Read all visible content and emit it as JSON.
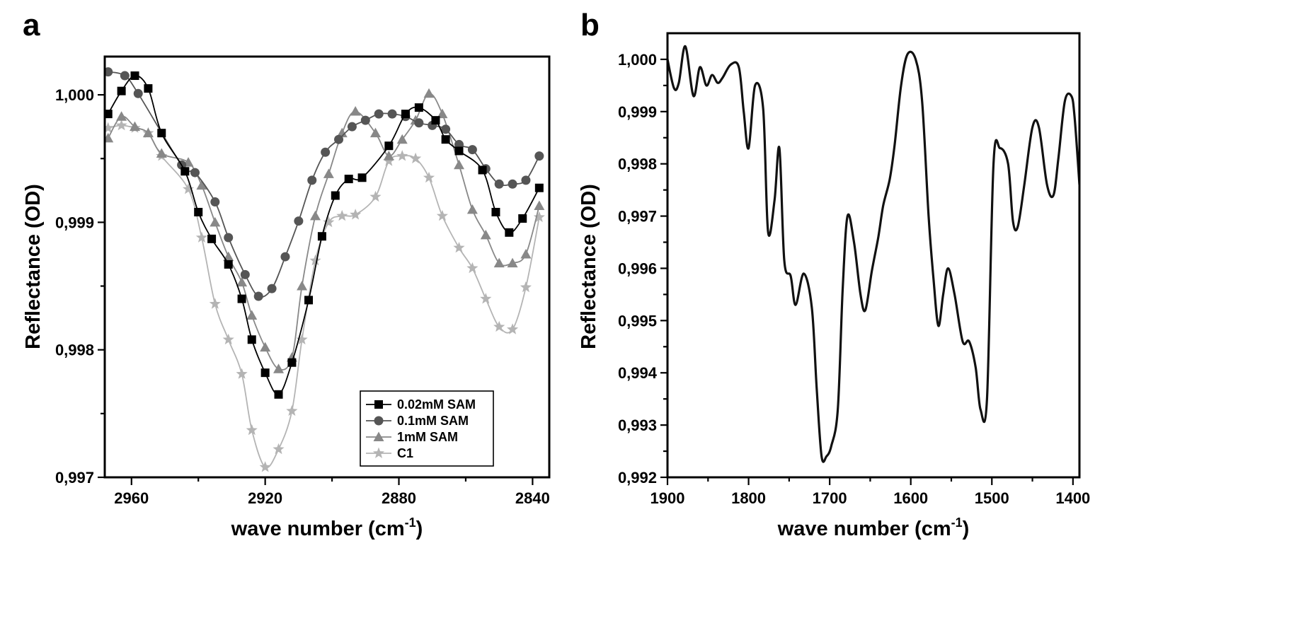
{
  "chart_data": [
    {
      "panel": "a",
      "type": "line",
      "xlabel": "wave number (cm",
      "xlabel_sup": "-1",
      "xlabel_end": ")",
      "ylabel": "Reflectance (OD)",
      "xlim": [
        2968,
        2835
      ],
      "ylim": [
        0.997,
        1.0003
      ],
      "x_reversed": true,
      "xticks": [
        2960,
        2920,
        2880,
        2840
      ],
      "xtick_labels": [
        "2960",
        "2920",
        "2880",
        "2840"
      ],
      "yticks": [
        0.997,
        0.998,
        0.999,
        1.0
      ],
      "ytick_labels": [
        "0,997",
        "0,998",
        "0,999",
        "1,000"
      ],
      "legend_position": "lower-right",
      "series": [
        {
          "name": "0.02mM SAM",
          "marker": "square",
          "color": "#000000",
          "x": [
            2967,
            2963,
            2959,
            2955,
            2951,
            2944,
            2940,
            2936,
            2931,
            2927,
            2924,
            2920,
            2916,
            2912,
            2907,
            2903,
            2899,
            2895,
            2891,
            2883,
            2878,
            2874,
            2869,
            2866,
            2862,
            2855,
            2851,
            2847,
            2843,
            2838
          ],
          "y": [
            0.99985,
            1.00003,
            1.00015,
            1.00005,
            0.9997,
            0.9994,
            0.99908,
            0.99887,
            0.99867,
            0.9984,
            0.99808,
            0.99782,
            0.99765,
            0.9979,
            0.99839,
            0.99889,
            0.99921,
            0.99934,
            0.99935,
            0.9996,
            0.99985,
            0.9999,
            0.9998,
            0.99965,
            0.99956,
            0.99941,
            0.99908,
            0.99892,
            0.99903,
            0.99927
          ]
        },
        {
          "name": "0.1mM SAM",
          "marker": "circle",
          "color": "#555555",
          "x": [
            2967,
            2962,
            2958,
            2945,
            2941,
            2935,
            2931,
            2926,
            2922,
            2918,
            2914,
            2910,
            2906,
            2902,
            2898,
            2894,
            2890,
            2886,
            2882,
            2878,
            2874,
            2870,
            2866,
            2862,
            2858,
            2854,
            2850,
            2846,
            2842,
            2838
          ],
          "y": [
            1.00018,
            1.00015,
            1.00001,
            0.99945,
            0.99939,
            0.99916,
            0.99888,
            0.99859,
            0.99842,
            0.99848,
            0.99873,
            0.99901,
            0.99933,
            0.99955,
            0.99965,
            0.99975,
            0.9998,
            0.99985,
            0.99985,
            0.99983,
            0.99978,
            0.99976,
            0.99973,
            0.99961,
            0.99957,
            0.99942,
            0.9993,
            0.9993,
            0.99933,
            0.99952
          ]
        },
        {
          "name": "1mM SAM",
          "marker": "triangle",
          "color": "#888888",
          "x": [
            2967,
            2963,
            2959,
            2955,
            2951,
            2943,
            2939,
            2935,
            2931,
            2927,
            2924,
            2920,
            2916,
            2912,
            2909,
            2905,
            2901,
            2897,
            2893,
            2887,
            2883,
            2879,
            2875,
            2871,
            2867,
            2862,
            2858,
            2854,
            2850,
            2846,
            2842,
            2838
          ],
          "y": [
            0.99966,
            0.99983,
            0.99975,
            0.9997,
            0.99954,
            0.99947,
            0.99929,
            0.999,
            0.99873,
            0.99853,
            0.99827,
            0.99802,
            0.99785,
            0.99794,
            0.9985,
            0.99905,
            0.99938,
            0.9997,
            0.99987,
            0.9997,
            0.99952,
            0.99965,
            0.9998,
            1.00001,
            0.99985,
            0.99945,
            0.9991,
            0.9989,
            0.99868,
            0.99868,
            0.99875,
            0.99913
          ]
        },
        {
          "name": "C1",
          "marker": "star",
          "color": "#b4b4b4",
          "x": [
            2967,
            2963,
            2959,
            2955,
            2951,
            2943,
            2939,
            2935,
            2931,
            2927,
            2924,
            2920,
            2916,
            2912,
            2909,
            2905,
            2901,
            2897,
            2893,
            2887,
            2883,
            2879,
            2875,
            2871,
            2867,
            2862,
            2858,
            2854,
            2850,
            2846,
            2842,
            2838
          ],
          "y": [
            0.99974,
            0.99976,
            0.99974,
            0.9997,
            0.99952,
            0.99926,
            0.99888,
            0.99836,
            0.99808,
            0.99781,
            0.99737,
            0.99708,
            0.99722,
            0.99752,
            0.99808,
            0.9987,
            0.999,
            0.99905,
            0.99906,
            0.9992,
            0.99948,
            0.99952,
            0.9995,
            0.99935,
            0.99905,
            0.9988,
            0.99864,
            0.9984,
            0.99818,
            0.99816,
            0.99849,
            0.99904
          ]
        }
      ]
    },
    {
      "panel": "b",
      "type": "line",
      "xlabel": "wave number (cm",
      "xlabel_sup": "-1",
      "xlabel_end": ")",
      "ylabel": "Reflectance (OD)",
      "xlim": [
        1900,
        1392
      ],
      "ylim": [
        0.992,
        1.0005
      ],
      "x_reversed": true,
      "xticks": [
        1900,
        1800,
        1700,
        1600,
        1500,
        1400
      ],
      "xtick_labels": [
        "1900",
        "1800",
        "1700",
        "1600",
        "1500",
        "1400"
      ],
      "yticks": [
        0.992,
        0.993,
        0.994,
        0.995,
        0.996,
        0.997,
        0.998,
        0.999,
        1.0
      ],
      "ytick_labels": [
        "0,992",
        "0,993",
        "0,994",
        "0,995",
        "0,996",
        "0,997",
        "0,998",
        "0,999",
        "1,000"
      ],
      "series": [
        {
          "color": "#111111",
          "x": [
            1900,
            1892,
            1886,
            1878,
            1868,
            1860,
            1852,
            1845,
            1838,
            1832,
            1822,
            1812,
            1806,
            1800,
            1792,
            1782,
            1776,
            1768,
            1762,
            1756,
            1748,
            1742,
            1732,
            1722,
            1716,
            1710,
            1704,
            1698,
            1690,
            1684,
            1678,
            1670,
            1662,
            1656,
            1648,
            1640,
            1634,
            1626,
            1620,
            1612,
            1604,
            1594,
            1586,
            1578,
            1572,
            1566,
            1560,
            1554,
            1546,
            1536,
            1528,
            1520,
            1514,
            1506,
            1498,
            1490,
            1480,
            1474,
            1468,
            1460,
            1450,
            1442,
            1432,
            1424,
            1418,
            1410,
            1402,
            1398,
            1392
          ],
          "y": [
            1.0,
            0.99945,
            0.99955,
            1.00025,
            0.9993,
            0.99985,
            0.9995,
            0.9997,
            0.99955,
            0.99965,
            0.9999,
            0.99985,
            0.999,
            0.9983,
            0.9995,
            0.99905,
            0.9967,
            0.9973,
            0.9983,
            0.99615,
            0.99585,
            0.9953,
            0.9959,
            0.99525,
            0.9937,
            0.9924,
            0.9924,
            0.9926,
            0.9933,
            0.9956,
            0.997,
            0.9965,
            0.9955,
            0.9952,
            0.99595,
            0.9966,
            0.9972,
            0.9977,
            0.99835,
            0.9995,
            1.0001,
            1.0,
            0.9992,
            0.997,
            0.9958,
            0.9949,
            0.9955,
            0.996,
            0.9955,
            0.9946,
            0.9946,
            0.9941,
            0.9933,
            0.9935,
            0.998,
            0.9983,
            0.998,
            0.9969,
            0.9968,
            0.9976,
            0.9987,
            0.9987,
            0.9976,
            0.9974,
            0.9981,
            0.9992,
            0.9993,
            0.9989,
            0.9976
          ]
        }
      ]
    }
  ]
}
